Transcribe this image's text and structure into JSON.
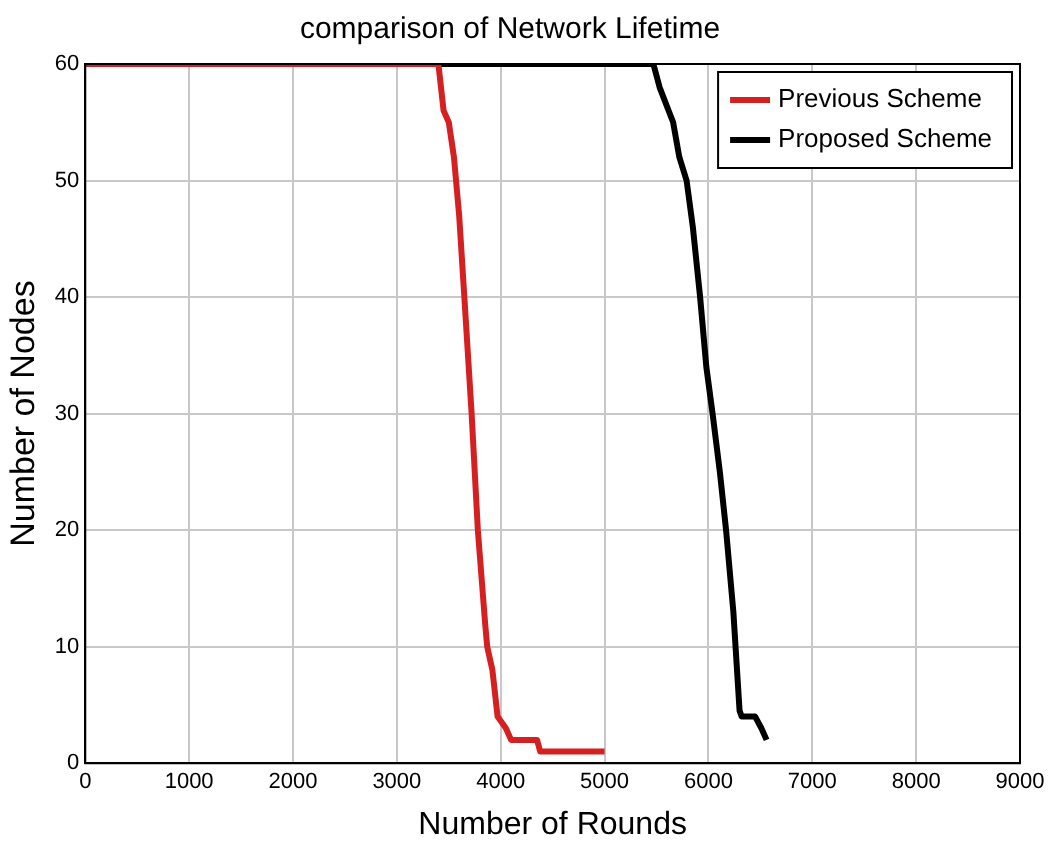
{
  "chart_data": {
    "type": "line",
    "title": "comparison of Network Lifetime",
    "xlabel": "Number of Rounds",
    "ylabel": "Number of Nodes",
    "xlim": [
      0,
      9000
    ],
    "xticks": [
      0,
      1000,
      2000,
      3000,
      4000,
      5000,
      6000,
      7000,
      8000,
      9000
    ],
    "ylim": [
      0,
      60
    ],
    "yticks": [
      0,
      10,
      20,
      30,
      40,
      50,
      60
    ],
    "grid": true,
    "legend": "top right",
    "marker": "none",
    "line_style": "solid",
    "series": [
      {
        "name": "Previous Scheme",
        "color": "#d42020",
        "x": [
          0,
          3400,
          3450,
          3500,
          3550,
          3600,
          3650,
          3720,
          3780,
          3850,
          3870,
          3920,
          3970,
          4050,
          4100,
          4350,
          4380,
          5000
        ],
        "values": [
          60,
          60,
          56,
          55,
          52,
          47,
          40,
          30,
          20,
          12,
          10,
          8,
          4,
          3,
          2,
          2,
          1,
          1
        ]
      },
      {
        "name": "Proposed Scheme",
        "color": "#000000",
        "x": [
          0,
          5470,
          5530,
          5660,
          5720,
          5790,
          5850,
          5920,
          5980,
          6040,
          6110,
          6170,
          6240,
          6300,
          6320,
          6450,
          6510,
          6560
        ],
        "values": [
          60,
          60,
          58,
          55,
          52,
          50,
          46,
          40,
          34,
          30,
          25,
          20,
          13,
          4.5,
          4,
          4,
          3,
          2
        ]
      }
    ]
  }
}
